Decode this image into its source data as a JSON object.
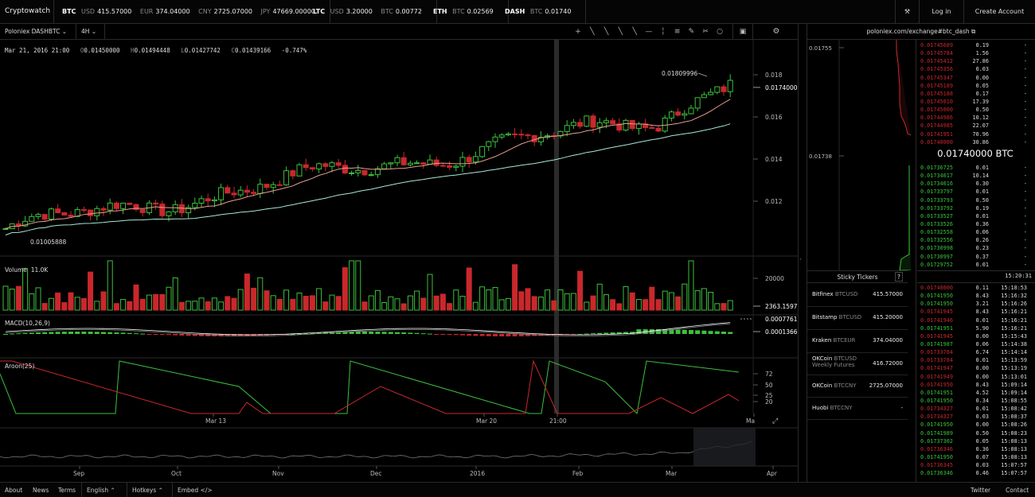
{
  "topbar": {
    "brand": "Cryptowatch",
    "btc": {
      "sym": "BTC",
      "usd_k": "USD",
      "usd": "415.57000",
      "eur_k": "EUR",
      "eur": "374.04000",
      "cny_k": "CNY",
      "cny": "2725.07000",
      "jpy_k": "JPY",
      "jpy": "47669.00000"
    },
    "ltc": {
      "sym": "LTC",
      "usd_k": "USD",
      "usd": "3.20000",
      "btc_k": "BTC",
      "btc": "0.00772"
    },
    "eth": {
      "sym": "ETH",
      "btc_k": "BTC",
      "btc": "0.02569"
    },
    "dash": {
      "sym": "DASH",
      "btc_k": "BTC",
      "btc": "0.01740"
    },
    "login": "Log in",
    "create": "Create Account"
  },
  "toolbar": {
    "market": "Poloniex DASHBTC",
    "period": "4H",
    "tools": [
      "+",
      "╲",
      "╲",
      "╲",
      "╲",
      "—",
      "╎",
      "≡",
      "✎",
      "✂",
      "○"
    ]
  },
  "ohlc": {
    "date": "Mar 21, 2016 21:00",
    "o_k": "O",
    "o": "0.01450000",
    "h_k": "H",
    "h": "0.01494448",
    "l_k": "L",
    "l": "0.01427742",
    "c_k": "C",
    "c": "0.01439166",
    "chg": "-0.747%"
  },
  "price_axis": [
    "0.018",
    "0.016",
    "0.014",
    "0.012"
  ],
  "price_current": "0.0174000",
  "hi_label": "0.01809996",
  "lo_label": "0.01005888",
  "volume": {
    "label": "Volume",
    "value": "11.0K",
    "axis_top": "20000",
    "axis_cur": "2363.1597"
  },
  "macd": {
    "label": "MACD(10,26,9)",
    "v1": "0.0007761",
    "v2": "0.0001366"
  },
  "aroon": {
    "label": "Aroon(25)",
    "ticks": [
      "72",
      "50",
      "25",
      "20"
    ]
  },
  "time_axis": {
    "labels": [
      "Mar 13",
      "Mar 20",
      "21:00",
      "Ma"
    ]
  },
  "overview_axis": [
    "Sep",
    "Oct",
    "Nov",
    "Dec",
    "2016",
    "Feb",
    "Mar",
    "Apr"
  ],
  "right": {
    "url": "poloniex.com/exchange#btc_dash",
    "depth_ticks": [
      "0.01755",
      "0.01738"
    ],
    "asks": [
      [
        "0.01745689",
        "0.19",
        "-"
      ],
      [
        "0.01745784",
        "1.56",
        "-"
      ],
      [
        "0.01745412",
        "27.86",
        "-"
      ],
      [
        "0.01745356",
        "0.03",
        "-"
      ],
      [
        "0.01745347",
        "0.00",
        "-"
      ],
      [
        "0.01745189",
        "0.05",
        "-"
      ],
      [
        "0.01745188",
        "0.17",
        "-"
      ],
      [
        "0.01745010",
        "17.39",
        "-"
      ],
      [
        "0.01745000",
        "0.50",
        "-"
      ],
      [
        "0.01744986",
        "10.12",
        "-"
      ],
      [
        "0.01744985",
        "22.07",
        "-"
      ],
      [
        "0.01741951",
        "70.96",
        "-"
      ],
      [
        "0.01740000",
        "30.86",
        "-"
      ]
    ],
    "last_price": "0.01740000 BTC",
    "bids": [
      [
        "0.01736725",
        "0.01",
        "-"
      ],
      [
        "0.01734017",
        "10.14",
        "-"
      ],
      [
        "0.01734016",
        "0.30",
        "-"
      ],
      [
        "0.01733797",
        "0.01",
        "-"
      ],
      [
        "0.01733793",
        "0.50",
        "-"
      ],
      [
        "0.01733792",
        "0.19",
        "-"
      ],
      [
        "0.01733527",
        "0.01",
        "-"
      ],
      [
        "0.01733526",
        "0.36",
        "-"
      ],
      [
        "0.01732558",
        "0.06",
        "-"
      ],
      [
        "0.01732556",
        "0.26",
        "-"
      ],
      [
        "0.01730998",
        "0.23",
        "-"
      ],
      [
        "0.01730997",
        "0.37",
        "-"
      ],
      [
        "0.01729752",
        "0.01",
        "-"
      ]
    ],
    "trades_time": "15:20:31",
    "trades": [
      [
        "0.01740000",
        "0.11",
        "15:18:53",
        "r"
      ],
      [
        "0.01741950",
        "8.43",
        "15:16:32",
        "g"
      ],
      [
        "0.01741950",
        "3.21",
        "15:16:26",
        "g"
      ],
      [
        "0.01741945",
        "8.43",
        "15:16:21",
        "r"
      ],
      [
        "0.01741946",
        "0.01",
        "15:16:21",
        "r"
      ],
      [
        "0.01741951",
        "5.90",
        "15:16:21",
        "g"
      ],
      [
        "0.01741945",
        "0.00",
        "15:15:43",
        "r"
      ],
      [
        "0.01741987",
        "0.06",
        "15:14:38",
        "g"
      ],
      [
        "0.01733784",
        "6.74",
        "15:14:14",
        "r"
      ],
      [
        "0.01733784",
        "0.01",
        "15:13:59",
        "r"
      ],
      [
        "0.01741947",
        "0.00",
        "15:13:19",
        "r"
      ],
      [
        "0.01741949",
        "0.00",
        "15:13:01",
        "r"
      ],
      [
        "0.01741950",
        "8.43",
        "15:09:14",
        "r"
      ],
      [
        "0.01741951",
        "4.52",
        "15:09:14",
        "g"
      ],
      [
        "0.01741950",
        "0.34",
        "15:08:55",
        "g"
      ],
      [
        "0.01734327",
        "0.01",
        "15:08:42",
        "r"
      ],
      [
        "0.01734327",
        "0.03",
        "15:08:37",
        "r"
      ],
      [
        "0.01741950",
        "0.00",
        "15:08:26",
        "g"
      ],
      [
        "0.01741989",
        "0.50",
        "15:08:23",
        "g"
      ],
      [
        "0.01737302",
        "0.05",
        "15:08:13",
        "g"
      ],
      [
        "0.01736346",
        "0.36",
        "15:08:13",
        "r"
      ],
      [
        "0.01741950",
        "0.07",
        "15:08:13",
        "g"
      ],
      [
        "0.01736345",
        "0.03",
        "15:07:57",
        "r"
      ],
      [
        "0.01736346",
        "0.46",
        "15:07:57",
        "g"
      ]
    ],
    "sticky_title": "Sticky Tickers",
    "sticky_help": "?",
    "sticky": [
      {
        "ex": "Bitfinex",
        "pair": "BTCUSD",
        "pair2": "",
        "price": "415.57000"
      },
      {
        "ex": "Bitstamp",
        "pair": "BTCUSD",
        "pair2": "",
        "price": "415.20000"
      },
      {
        "ex": "Kraken",
        "pair": "BTCEUR",
        "pair2": "",
        "price": "374.04000"
      },
      {
        "ex": "OKCoin",
        "pair": "BTCUSD",
        "pair2": "Weekly Futures",
        "price": "416.72000"
      },
      {
        "ex": "OKCoin",
        "pair": "BTCCNY",
        "pair2": "",
        "price": "2725.07000"
      },
      {
        "ex": "Huobi",
        "pair": "BTCCNY",
        "pair2": "",
        "price": "-"
      }
    ]
  },
  "footer": {
    "about": "About",
    "news": "News",
    "terms": "Terms",
    "lang": "English",
    "hotkeys": "Hotkeys",
    "embed": "Embed",
    "twitter": "Twitter",
    "contact": "Contact"
  },
  "colors": {
    "up": "#3cc13c",
    "down": "#c8282c",
    "ma_fast": "#e8a090",
    "ma_slow": "#a8e8d8"
  }
}
